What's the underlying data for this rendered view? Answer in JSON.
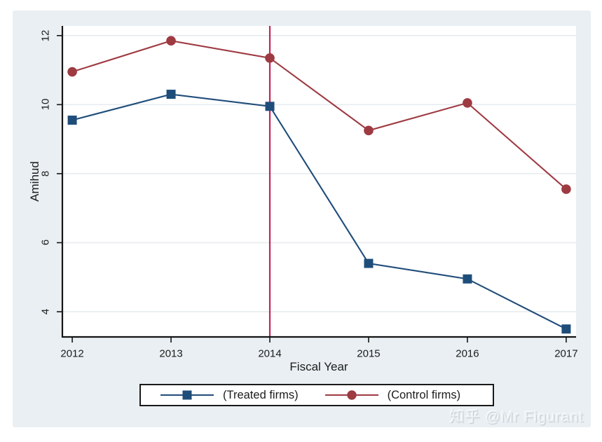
{
  "watermark": {
    "text": "知乎 @Mr Figurant"
  },
  "style": {
    "figure_bg": "#e9eff3",
    "plot_bg": "#ffffff",
    "grid_color": "#e7ecef",
    "axis_color": "#141414",
    "text_color": "#1c1c1c"
  },
  "chart_data": {
    "type": "line",
    "title": "",
    "xlabel": "Fiscal Year",
    "ylabel": "Amihud",
    "x": [
      2012,
      2013,
      2014,
      2015,
      2016,
      2017
    ],
    "x_tick_labels": [
      "2012",
      "2013",
      "2014",
      "2015",
      "2016",
      "2017"
    ],
    "y_ticks": [
      4,
      6,
      8,
      10,
      12
    ],
    "y_tick_labels": [
      "4",
      "6",
      "8",
      "10",
      "12"
    ],
    "xlim": [
      2011.9,
      2017.1
    ],
    "ylim": [
      3.27,
      12.28
    ],
    "grid": "horizontal",
    "legend_position": "bottom",
    "series": [
      {
        "name": "(Treated firms)",
        "marker": "square",
        "color": "#1f4d7a",
        "values": [
          9.55,
          10.3,
          9.95,
          5.4,
          4.95,
          3.5
        ]
      },
      {
        "name": "(Control firms)",
        "marker": "circle",
        "color": "#9e3a42",
        "values": [
          10.95,
          11.85,
          11.35,
          9.25,
          10.05,
          7.55
        ]
      }
    ],
    "vline": {
      "x": 2014,
      "color": "#c22457"
    }
  }
}
